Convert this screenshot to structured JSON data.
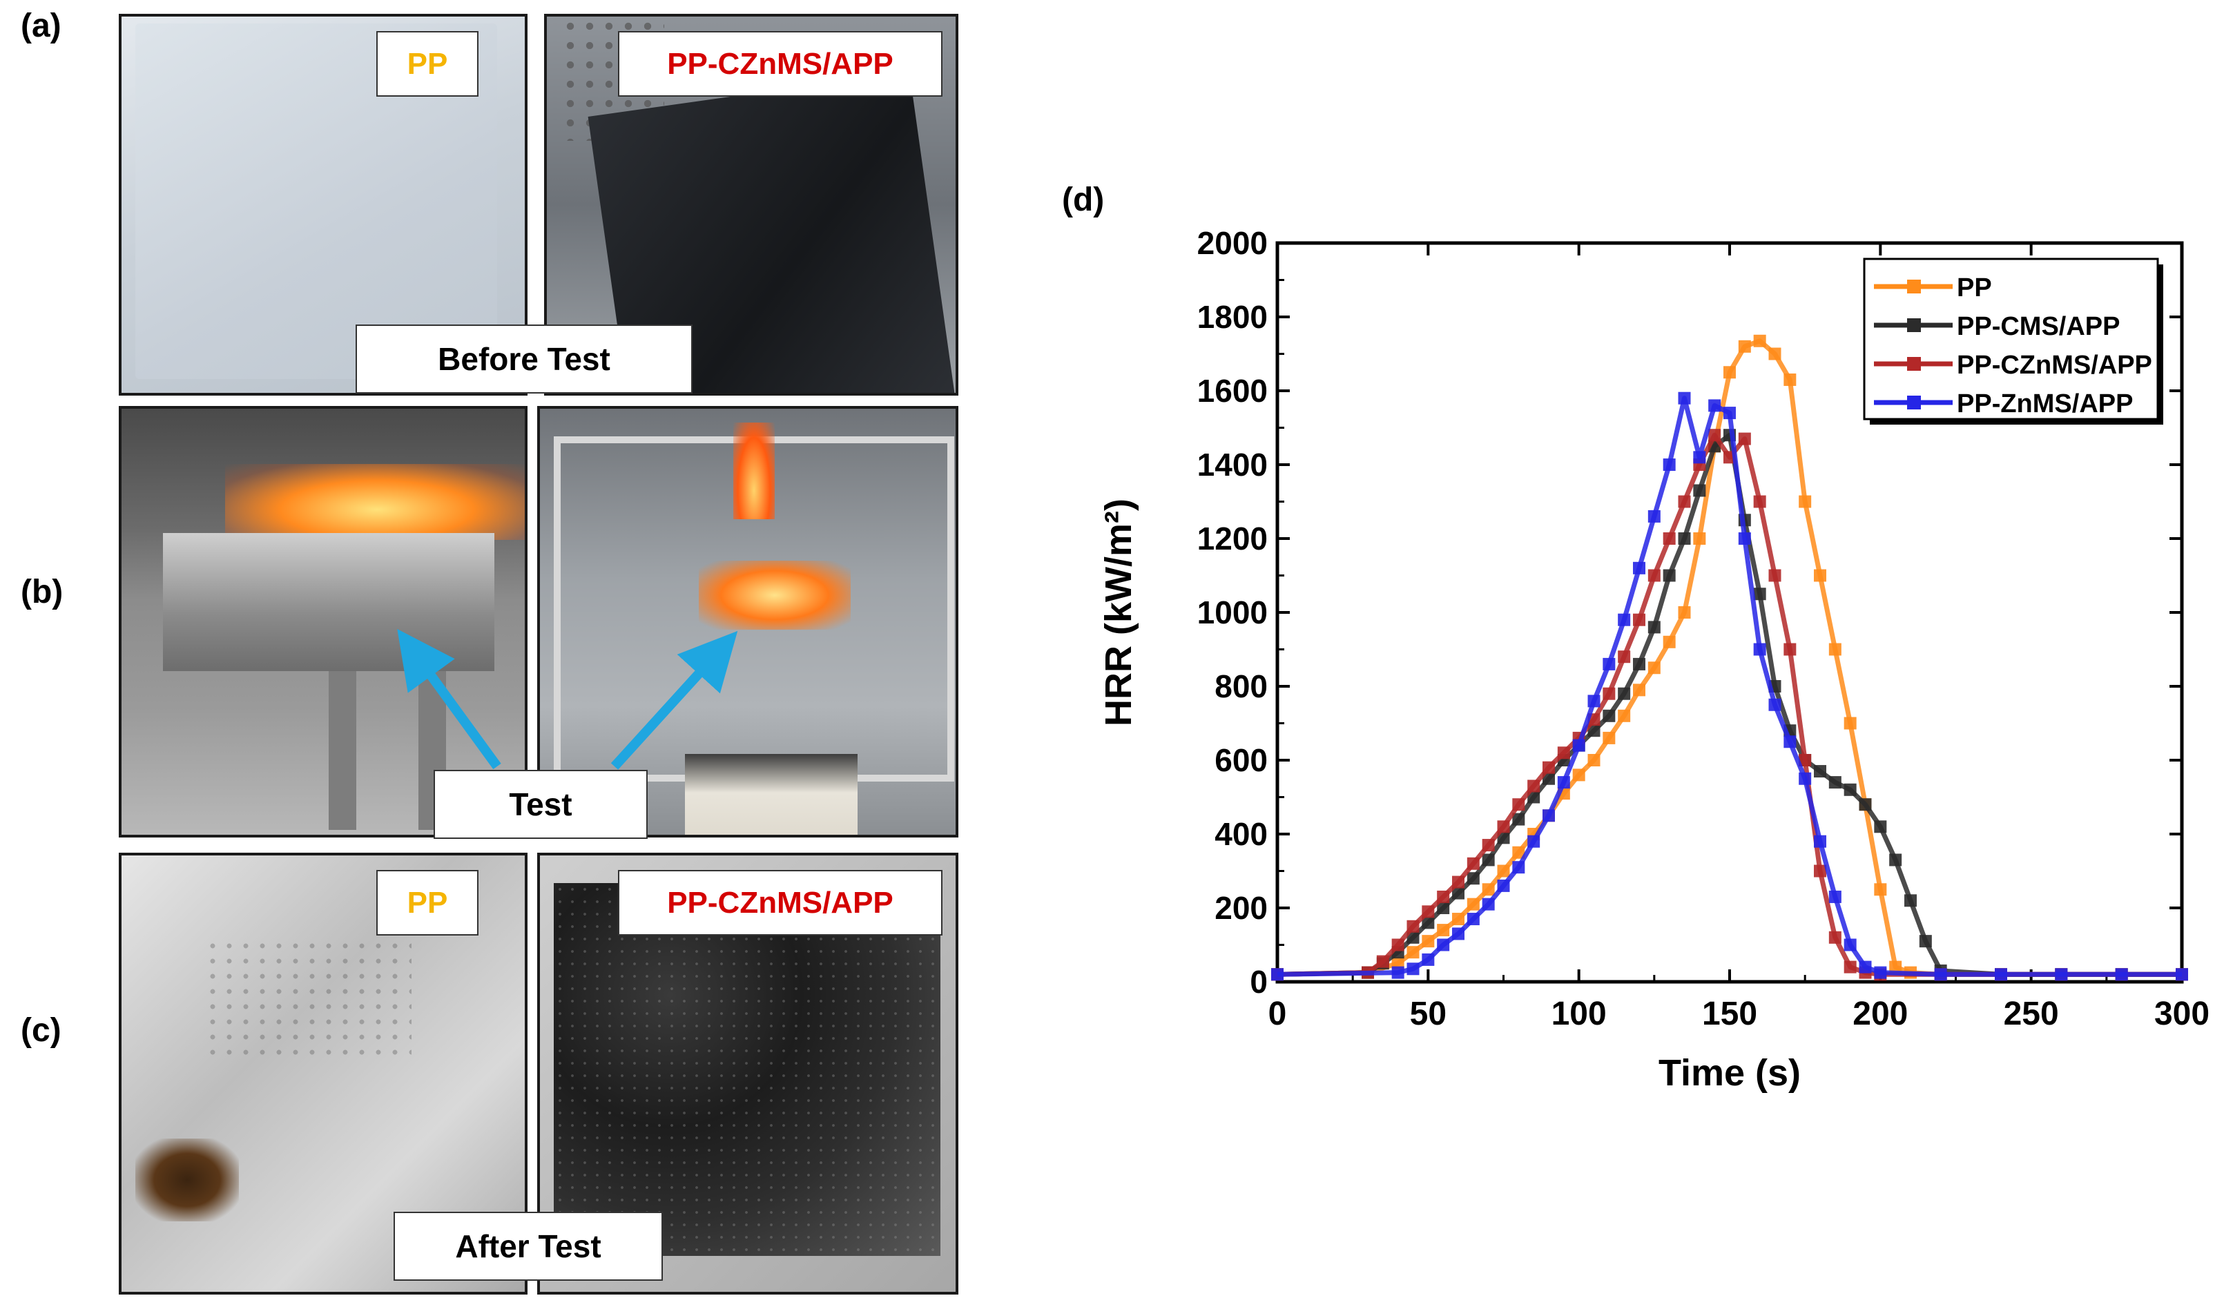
{
  "panels": {
    "a": "(a)",
    "b": "(b)",
    "c": "(c)",
    "d": "(d)"
  },
  "photos": {
    "pp_label": "PP",
    "czms_label": "PP-CZnMS/APP",
    "before_test": "Before Test",
    "test": "Test",
    "after_test": "After Test",
    "pp_label_color": "#f5b400",
    "czms_label_color": "#d40000",
    "arrow_color": "#1fa6e0"
  },
  "chart_data": {
    "type": "line",
    "xlabel": "Time (s)",
    "ylabel": "HRR (kW/m²)",
    "xlim": [
      0,
      300
    ],
    "ylim": [
      0,
      2000
    ],
    "xticks": [
      0,
      50,
      100,
      150,
      200,
      250,
      300
    ],
    "yticks": [
      0,
      200,
      400,
      600,
      800,
      1000,
      1200,
      1400,
      1600,
      1800,
      2000
    ],
    "grid": false,
    "legend_position": "top-right",
    "series": [
      {
        "name": "PP",
        "color": "#ff8c1a",
        "x": [
          0,
          30,
          40,
          45,
          50,
          55,
          60,
          65,
          70,
          75,
          80,
          85,
          90,
          95,
          100,
          105,
          110,
          115,
          120,
          125,
          130,
          135,
          140,
          145,
          150,
          155,
          160,
          165,
          170,
          175,
          180,
          185,
          190,
          195,
          200,
          205,
          210,
          220,
          240,
          260,
          280,
          300
        ],
        "y": [
          20,
          25,
          50,
          80,
          110,
          140,
          170,
          210,
          250,
          300,
          350,
          400,
          450,
          510,
          560,
          600,
          660,
          720,
          790,
          850,
          920,
          1000,
          1200,
          1450,
          1650,
          1720,
          1735,
          1700,
          1630,
          1300,
          1100,
          900,
          700,
          480,
          250,
          40,
          25,
          20,
          20,
          20,
          20,
          20
        ]
      },
      {
        "name": "PP-CMS/APP",
        "color": "#2b2b2b",
        "x": [
          0,
          30,
          35,
          40,
          45,
          50,
          55,
          60,
          65,
          70,
          75,
          80,
          85,
          90,
          95,
          100,
          105,
          110,
          115,
          120,
          125,
          130,
          135,
          140,
          145,
          150,
          155,
          160,
          165,
          170,
          175,
          180,
          185,
          190,
          195,
          200,
          205,
          210,
          215,
          220,
          240,
          260,
          280,
          300
        ],
        "y": [
          20,
          25,
          50,
          80,
          120,
          160,
          200,
          240,
          280,
          330,
          390,
          440,
          500,
          550,
          600,
          640,
          680,
          720,
          780,
          860,
          960,
          1100,
          1200,
          1330,
          1450,
          1480,
          1250,
          1050,
          800,
          680,
          600,
          570,
          540,
          520,
          480,
          420,
          330,
          220,
          110,
          30,
          20,
          20,
          20,
          20
        ]
      },
      {
        "name": "PP-CZnMS/APP",
        "color": "#b32828",
        "x": [
          0,
          30,
          35,
          40,
          45,
          50,
          55,
          60,
          65,
          70,
          75,
          80,
          85,
          90,
          95,
          100,
          105,
          110,
          115,
          120,
          125,
          130,
          135,
          140,
          145,
          150,
          155,
          160,
          165,
          170,
          175,
          180,
          185,
          190,
          195,
          200,
          220,
          240,
          260,
          280,
          300
        ],
        "y": [
          20,
          25,
          55,
          100,
          150,
          190,
          230,
          270,
          320,
          370,
          420,
          480,
          530,
          580,
          620,
          660,
          710,
          780,
          880,
          980,
          1100,
          1200,
          1300,
          1400,
          1480,
          1420,
          1470,
          1300,
          1100,
          900,
          600,
          300,
          120,
          40,
          25,
          20,
          20,
          20,
          20,
          20,
          20
        ]
      },
      {
        "name": "PP-ZnMS/APP",
        "color": "#2525e6",
        "x": [
          0,
          40,
          45,
          50,
          55,
          60,
          65,
          70,
          75,
          80,
          85,
          90,
          95,
          100,
          105,
          110,
          115,
          120,
          125,
          130,
          135,
          140,
          145,
          150,
          155,
          160,
          165,
          170,
          175,
          180,
          185,
          190,
          195,
          200,
          220,
          240,
          260,
          280,
          300
        ],
        "y": [
          20,
          25,
          35,
          60,
          100,
          130,
          170,
          210,
          260,
          310,
          380,
          450,
          540,
          640,
          760,
          860,
          980,
          1120,
          1260,
          1400,
          1580,
          1420,
          1560,
          1540,
          1200,
          900,
          750,
          650,
          550,
          380,
          230,
          100,
          40,
          25,
          20,
          20,
          20,
          20,
          20
        ]
      }
    ]
  }
}
